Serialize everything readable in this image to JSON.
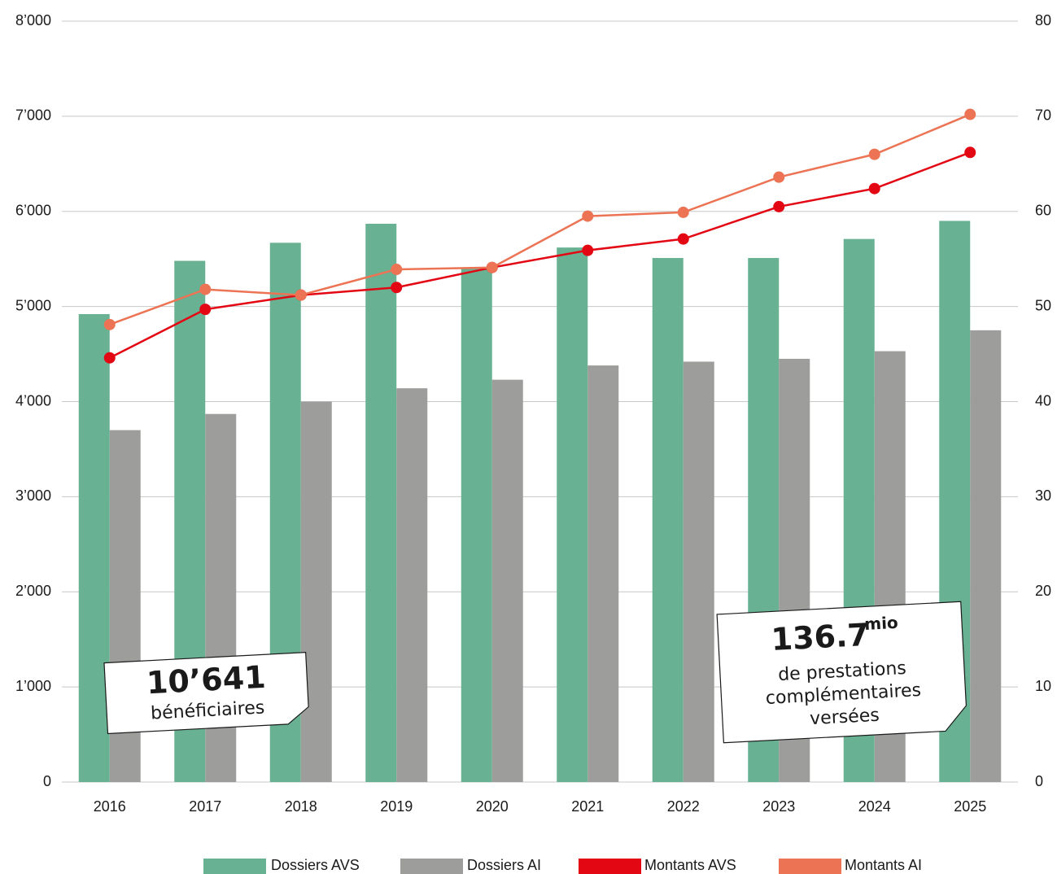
{
  "chart_data": {
    "type": "bar_line",
    "categories": [
      "2016",
      "2017",
      "2018",
      "2019",
      "2020",
      "2021",
      "2022",
      "2023",
      "2024",
      "2025"
    ],
    "series": [
      {
        "name": "Dossiers AVS",
        "type": "bar",
        "color": "#68b293",
        "values": [
          4920,
          5480,
          5670,
          5870,
          5410,
          5620,
          5510,
          5510,
          5710,
          5900
        ]
      },
      {
        "name": "Dossiers AI",
        "type": "bar",
        "color": "#9d9d9c",
        "values": [
          3700,
          3870,
          4000,
          4140,
          4230,
          4380,
          4420,
          4450,
          4530,
          4750
        ]
      },
      {
        "name": "Montants AVS",
        "type": "line",
        "axis": "y2",
        "color": "#e30613",
        "values": [
          44.6,
          49.7,
          51.2,
          52.0,
          54.1,
          55.9,
          57.1,
          60.5,
          62.4,
          66.2
        ]
      },
      {
        "name": "Montants AI",
        "type": "line",
        "axis": "y2",
        "color": "#ec7455",
        "values": [
          48.1,
          51.8,
          51.2,
          53.9,
          54.1,
          59.5,
          59.9,
          63.6,
          66.0,
          70.2
        ]
      }
    ],
    "ylim": [
      0,
      8000
    ],
    "yticks": [
      0,
      {
        "value": 1000,
        "label": "1’000"
      },
      {
        "value": 2000,
        "label": "2’000"
      },
      {
        "value": 3000,
        "label": "3’000"
      },
      {
        "value": 4000,
        "label": "4’000"
      },
      {
        "value": 5000,
        "label": "5’000"
      },
      {
        "value": 6000,
        "label": "6’000"
      },
      {
        "value": 7000,
        "label": "7’000"
      },
      {
        "value": 8000,
        "label": "8’000"
      }
    ],
    "y2lim": [
      0,
      80
    ],
    "y2ticks": [
      0,
      10,
      20,
      30,
      40,
      50,
      60,
      70,
      80
    ],
    "grid": true,
    "legend": "bottom",
    "annotations": [
      {
        "value": "10’641",
        "lines": [
          "bénéficiaires"
        ]
      },
      {
        "value": "136.7",
        "unit": "mio",
        "lines": [
          "de prestations",
          "complémentaires",
          "versées"
        ]
      }
    ]
  }
}
